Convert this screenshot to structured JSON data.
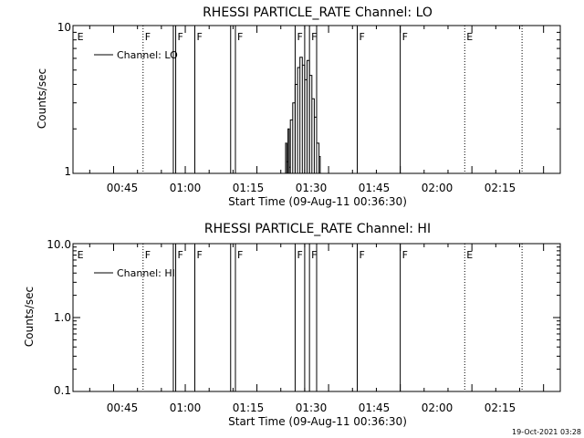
{
  "chart_data": [
    {
      "type": "line",
      "title": "RHESSI PARTICLE_RATE Channel: LO",
      "xlabel": "Start Time (09-Aug-11 00:36:30)",
      "ylabel": "Counts/sec",
      "y_scale": "log",
      "ylim": [
        1,
        10
      ],
      "xlim": [
        "00:36:30",
        "02:18:30"
      ],
      "x_ticks": [
        "00:45",
        "01:00",
        "01:15",
        "01:30",
        "01:45",
        "02:00",
        "02:15"
      ],
      "y_ticks": [
        "1",
        "10"
      ],
      "legend": {
        "placement": "top-left",
        "entries": [
          "Channel: LO"
        ]
      },
      "grid": false,
      "series": [
        {
          "name": "Channel: LO",
          "x": [
            "01:20:45",
            "01:21:00",
            "01:21:15",
            "01:21:30",
            "01:21:45",
            "01:22:00",
            "01:22:30",
            "01:23:00",
            "01:23:30",
            "01:24:00",
            "01:24:30",
            "01:25:00",
            "01:25:30",
            "01:26:00",
            "01:26:30",
            "01:27:00",
            "01:27:30",
            "01:28:00",
            "01:28:15"
          ],
          "y": [
            1,
            1.6,
            1.2,
            2.0,
            1.1,
            2.3,
            3.0,
            4.0,
            5.2,
            6.1,
            5.4,
            4.3,
            5.8,
            4.6,
            3.2,
            2.4,
            1.6,
            1.3,
            1.0
          ]
        }
      ]
    },
    {
      "type": "line",
      "title": "RHESSI PARTICLE_RATE Channel: HI",
      "xlabel": "Start Time (09-Aug-11 00:36:30)",
      "ylabel": "Counts/sec",
      "y_scale": "log",
      "ylim": [
        0.1,
        10
      ],
      "xlim": [
        "00:36:30",
        "02:18:30"
      ],
      "x_ticks": [
        "00:45",
        "01:00",
        "01:15",
        "01:30",
        "01:45",
        "02:00",
        "02:15"
      ],
      "y_ticks": [
        "0.1",
        "1.0",
        "10.0"
      ],
      "legend": {
        "placement": "top-left",
        "entries": [
          "Channel: HI"
        ]
      },
      "grid": false,
      "series": [
        {
          "name": "Channel: HI",
          "x": [],
          "y": []
        }
      ]
    }
  ],
  "markers": [
    {
      "time": "00:37:00",
      "letter": "E",
      "style": "none"
    },
    {
      "time": "00:51:10",
      "letter": "F",
      "style": "dotted"
    },
    {
      "time": "00:57:30",
      "letter": "",
      "style": "solid"
    },
    {
      "time": "00:58:00",
      "letter": "F",
      "style": "solid"
    },
    {
      "time": "01:02:00",
      "letter": "F",
      "style": "solid"
    },
    {
      "time": "01:09:30",
      "letter": "",
      "style": "solid"
    },
    {
      "time": "01:10:30",
      "letter": "F",
      "style": "solid"
    },
    {
      "time": "01:23:00",
      "letter": "F",
      "style": "solid"
    },
    {
      "time": "01:25:00",
      "letter": "",
      "style": "solid"
    },
    {
      "time": "01:26:00",
      "letter": "F",
      "style": "solid"
    },
    {
      "time": "01:27:30",
      "letter": "",
      "style": "solid"
    },
    {
      "time": "01:36:00",
      "letter": "F",
      "style": "solid"
    },
    {
      "time": "01:45:00",
      "letter": "F",
      "style": "solid"
    },
    {
      "time": "01:58:30",
      "letter": "E",
      "style": "dotted"
    },
    {
      "time": "02:10:30",
      "letter": "",
      "style": "dotted"
    }
  ],
  "footer": {
    "timestamp": "19-Oct-2021 03:28"
  }
}
